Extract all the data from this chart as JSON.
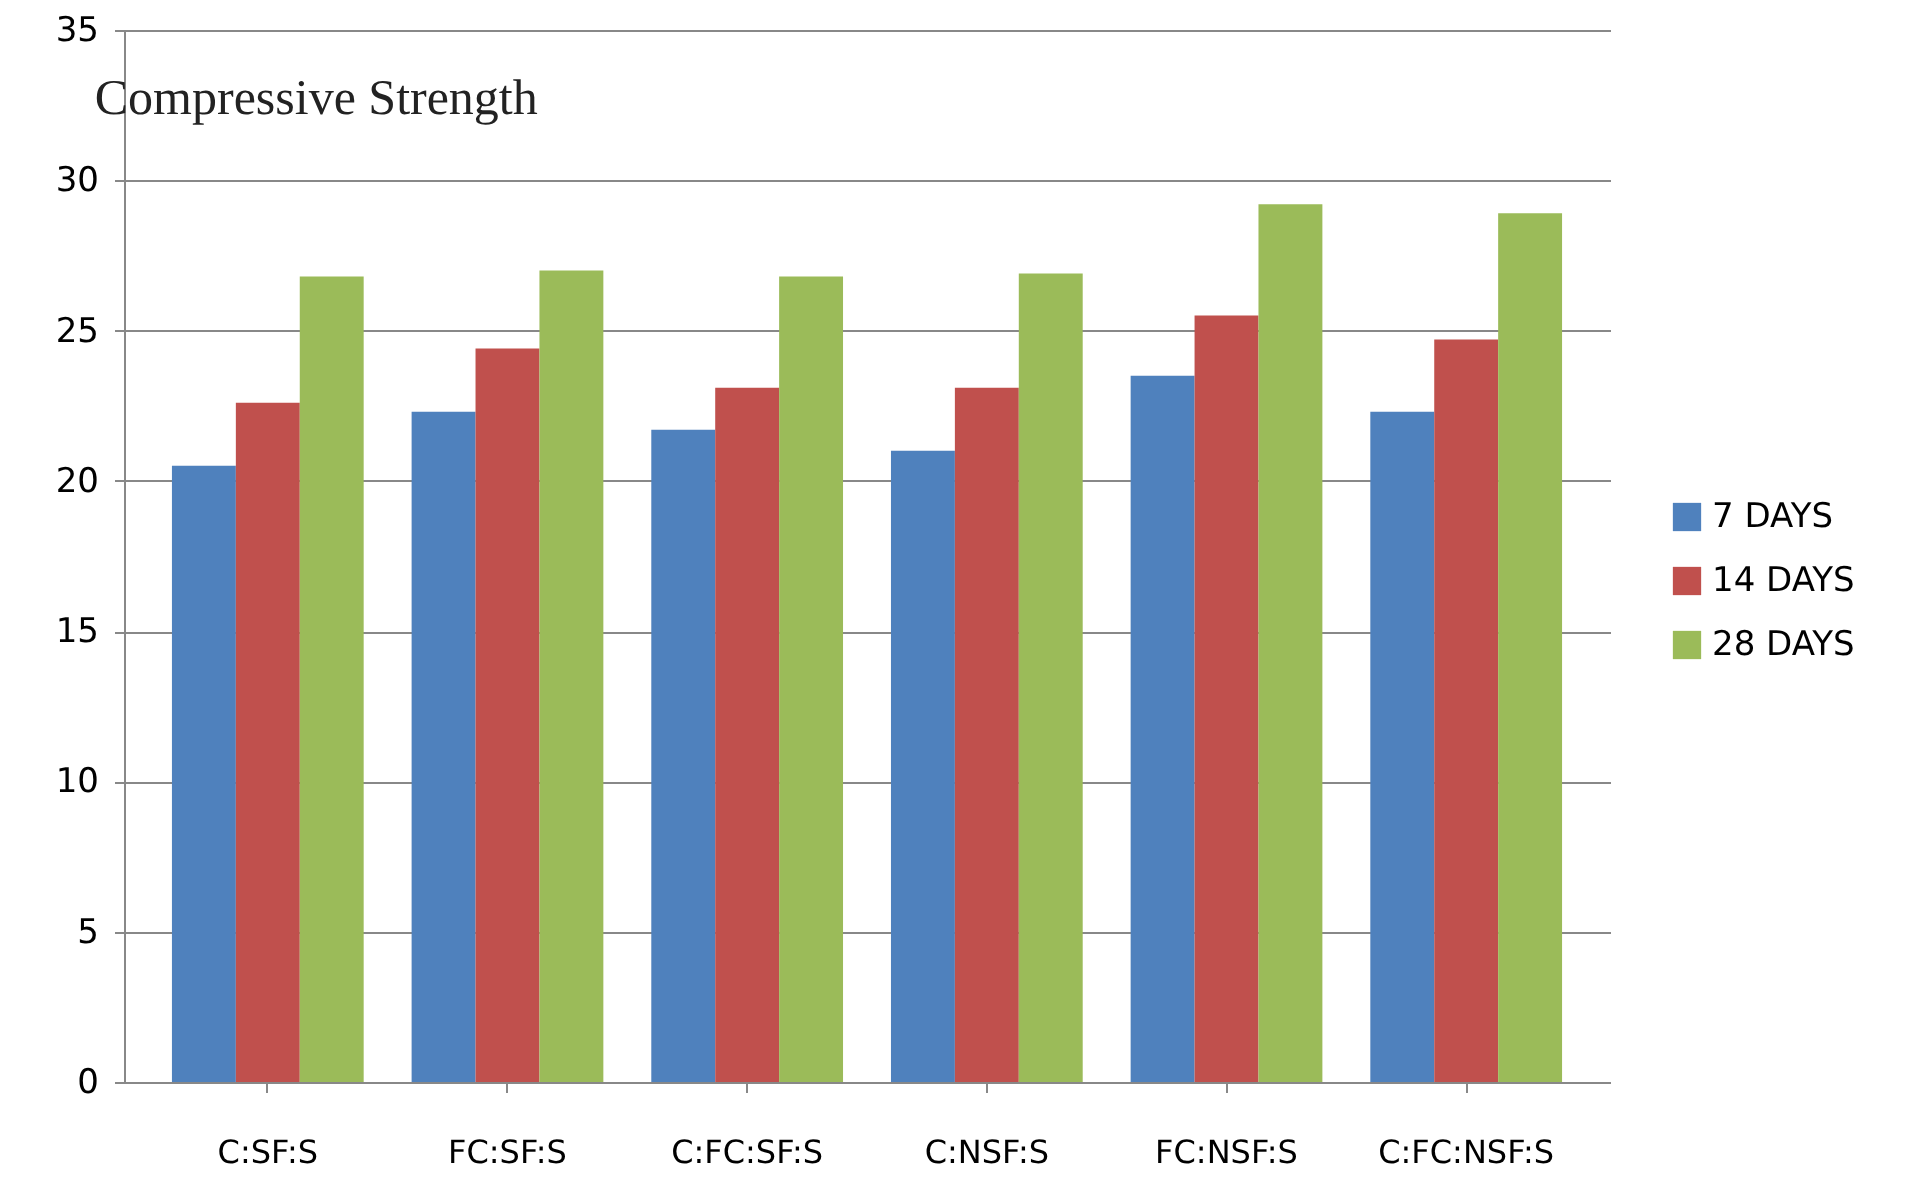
{
  "chart_data": {
    "type": "bar",
    "title": "Compressive Strength",
    "categories": [
      "C:SF:S",
      "FC:SF:S",
      "C:FC:SF:S",
      "C:NSF:S",
      "FC:NSF:S",
      "C:FC:NSF:S"
    ],
    "series": [
      {
        "name": "7 DAYS",
        "color": "#4f81bd",
        "values": [
          20.5,
          22.3,
          21.7,
          21.0,
          23.5,
          22.3
        ]
      },
      {
        "name": "14 DAYS",
        "color": "#c0504d",
        "values": [
          22.6,
          24.4,
          23.1,
          23.1,
          25.5,
          24.7
        ]
      },
      {
        "name": "28 DAYS",
        "color": "#9bbb59",
        "values": [
          26.8,
          27.0,
          26.8,
          26.9,
          29.2,
          28.9
        ]
      }
    ],
    "ylim": [
      0,
      35
    ],
    "yticks": [
      0,
      5,
      10,
      15,
      20,
      25,
      30,
      35
    ],
    "grid": "y",
    "legend": "right"
  }
}
